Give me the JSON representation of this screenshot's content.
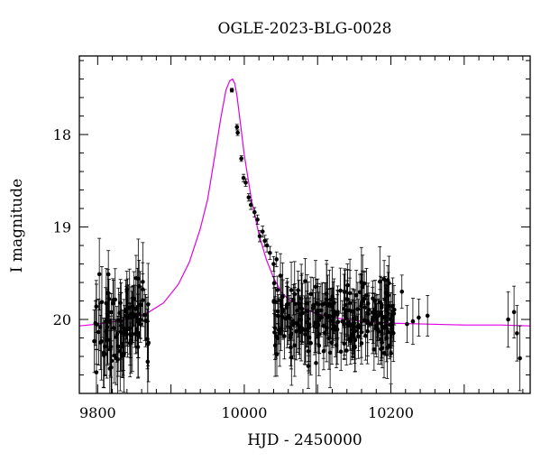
{
  "chart_data": {
    "type": "scatter",
    "title": "OGLE-2023-BLG-0028",
    "xlabel": "HJD - 2450000",
    "ylabel": "I magnitude",
    "xlim": [
      9775,
      10390
    ],
    "ylim": [
      20.8,
      17.15
    ],
    "y_inverted": true,
    "xticks": [
      9800,
      10000,
      10200
    ],
    "xtick_labels": [
      "9800",
      "10000",
      "10200"
    ],
    "yticks": [
      18,
      19,
      20
    ],
    "ytick_labels": [
      "18",
      "19",
      "20"
    ],
    "grid": false,
    "legend": "none",
    "model_color": "#e000e0",
    "point_color": "#000000",
    "model": {
      "name": "model",
      "x": [
        9775,
        9800,
        9825,
        9850,
        9870,
        9890,
        9910,
        9925,
        9940,
        9950,
        9960,
        9968,
        9975,
        9980,
        9984,
        9987,
        9990,
        9995,
        10000,
        10010,
        10020,
        10030,
        10040,
        10050,
        10060,
        10080,
        10100,
        10130,
        10160,
        10200,
        10250,
        10300,
        10350,
        10390
      ],
      "y": [
        20.07,
        20.05,
        20.02,
        19.98,
        19.92,
        19.82,
        19.62,
        19.38,
        19.02,
        18.7,
        18.22,
        17.82,
        17.52,
        17.42,
        17.4,
        17.45,
        17.58,
        17.9,
        18.22,
        18.72,
        19.08,
        19.35,
        19.55,
        19.7,
        19.78,
        19.88,
        19.94,
        19.99,
        20.02,
        20.04,
        20.05,
        20.06,
        20.06,
        20.07
      ]
    },
    "peak_points": {
      "x": [
        9983,
        9990,
        9991,
        9996,
        9999,
        10002,
        10006,
        10009,
        10014,
        10018,
        10021,
        10025,
        10028,
        10031,
        10035,
        10040,
        10044
      ],
      "y": [
        17.52,
        17.92,
        17.98,
        18.26,
        18.47,
        18.52,
        18.68,
        18.76,
        18.84,
        18.92,
        19.1,
        19.05,
        19.15,
        19.2,
        19.28,
        19.4,
        19.35
      ],
      "err": [
        0.02,
        0.03,
        0.03,
        0.03,
        0.04,
        0.04,
        0.04,
        0.05,
        0.05,
        0.05,
        0.06,
        0.06,
        0.06,
        0.07,
        0.07,
        0.08,
        0.08
      ]
    },
    "baseline_early": {
      "x_range": [
        9795,
        9870
      ],
      "y_center": 20.05,
      "y_spread": 0.4,
      "err_range": [
        0.18,
        0.45
      ]
    },
    "baseline_late": {
      "x_range": [
        10040,
        10205
      ],
      "y_center": 20.0,
      "y_spread": 0.32,
      "err_range": [
        0.12,
        0.4
      ]
    },
    "late_points": {
      "x": [
        10215,
        10222,
        10230,
        10238,
        10250,
        10360,
        10368,
        10372,
        10376
      ],
      "y": [
        19.7,
        20.05,
        20.02,
        19.98,
        19.96,
        20.0,
        19.92,
        20.15,
        20.42
      ],
      "err": [
        0.18,
        0.2,
        0.25,
        0.2,
        0.22,
        0.3,
        0.28,
        0.3,
        0.35
      ]
    }
  }
}
